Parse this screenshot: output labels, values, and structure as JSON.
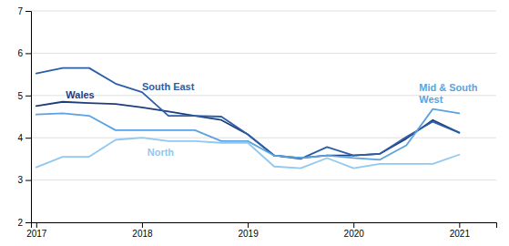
{
  "chart_data": {
    "type": "line",
    "x": [
      2017.0,
      2017.25,
      2017.5,
      2017.75,
      2018.0,
      2018.25,
      2018.5,
      2018.75,
      2019.0,
      2019.25,
      2019.5,
      2019.75,
      2020.0,
      2020.25,
      2020.5,
      2020.75,
      2021.0
    ],
    "series": [
      {
        "name": "Wales",
        "color": "#1f3d7a",
        "values": [
          4.75,
          4.85,
          4.82,
          4.8,
          4.72,
          4.62,
          4.52,
          4.42,
          4.08,
          3.58,
          3.52,
          3.58,
          3.58,
          3.62,
          3.98,
          4.42,
          4.12
        ]
      },
      {
        "name": "South East",
        "color": "#2b5ea8",
        "values": [
          5.52,
          5.65,
          5.65,
          5.28,
          5.08,
          4.52,
          4.52,
          4.5,
          4.08,
          3.58,
          3.5,
          3.78,
          3.58,
          3.62,
          4.02,
          4.38,
          4.12
        ]
      },
      {
        "name": "Mid & South West",
        "color": "#5ba3e0",
        "values": [
          4.55,
          4.58,
          4.52,
          4.18,
          4.18,
          4.18,
          4.18,
          3.92,
          3.92,
          3.58,
          3.52,
          3.58,
          3.52,
          3.48,
          3.82,
          4.68,
          4.58
        ]
      },
      {
        "name": "North",
        "color": "#90c8f0",
        "values": [
          3.3,
          3.55,
          3.55,
          3.95,
          4.0,
          3.92,
          3.92,
          3.88,
          3.88,
          3.32,
          3.28,
          3.52,
          3.28,
          3.38,
          3.38,
          3.38,
          3.6
        ]
      }
    ],
    "annotations": [
      {
        "text": "Wales",
        "x": 2017.28,
        "y": 5.02,
        "color": "#1f3d7a"
      },
      {
        "text": "South East",
        "x": 2018.0,
        "y": 5.2,
        "color": "#2b5ea8"
      },
      {
        "text": "Mid & South\nWest",
        "x": 2020.62,
        "y": 5.05,
        "color": "#5ba3e0"
      },
      {
        "text": "North",
        "x": 2018.05,
        "y": 3.65,
        "color": "#90c8f0"
      }
    ],
    "xlim": [
      2016.95,
      2021.35
    ],
    "xticks": [
      2017,
      2018,
      2019,
      2020,
      2021
    ],
    "ylim": [
      2,
      7
    ],
    "yticks": [
      2,
      3,
      4,
      5,
      6,
      7
    ],
    "grid": true
  }
}
